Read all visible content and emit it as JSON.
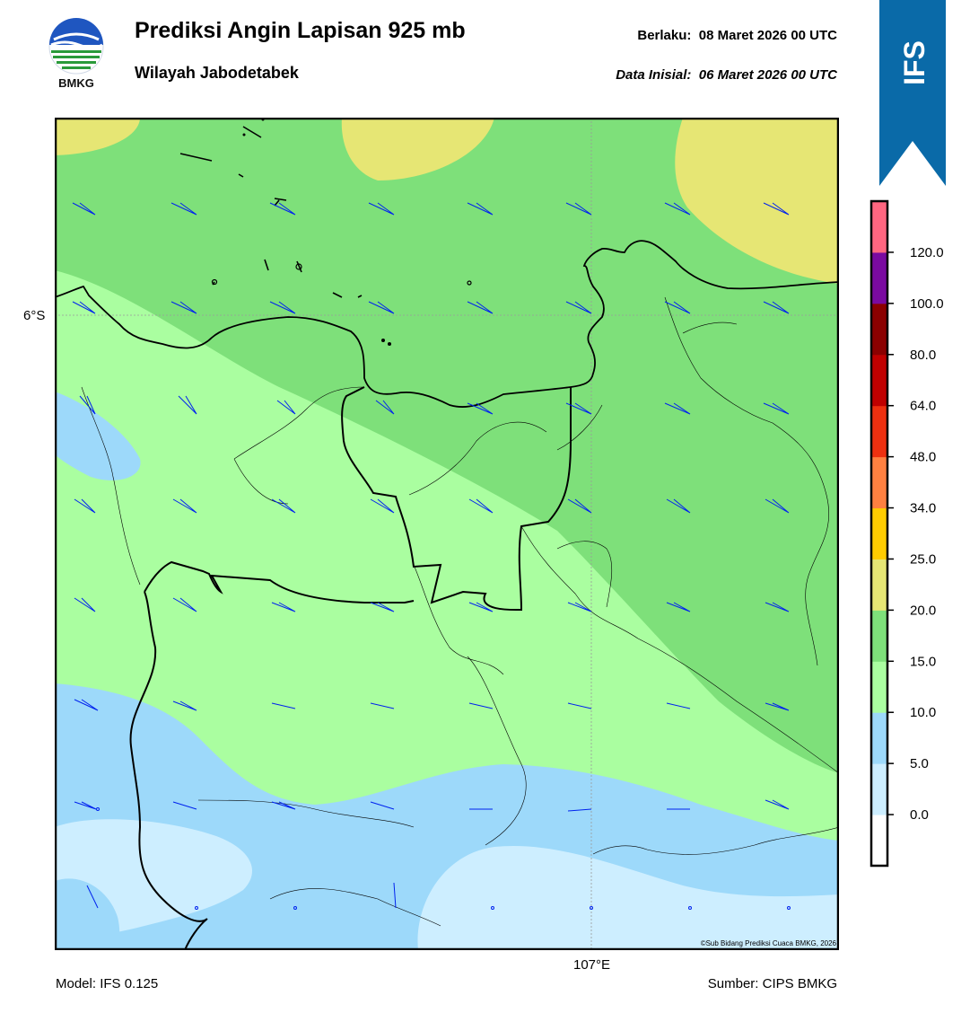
{
  "header": {
    "logo_text": "BMKG",
    "title": "Prediksi Angin Lapisan 925 mb",
    "subtitle": "Wilayah Jabodetabek",
    "valid_label": "Berlaku:",
    "valid_time": "08 Maret 2026 00 UTC",
    "init_label": "Data Inisial:",
    "init_time": "06 Maret 2026 00 UTC"
  },
  "ribbon": {
    "text": "IFS",
    "color": "#0066a8"
  },
  "map": {
    "lat_label": "6°S",
    "lon_label": "107°E",
    "copyright": "©Sub Bidang Prediksi Cuaca BMKG, 2026"
  },
  "legend": {
    "unit_levels": [
      "0.0",
      "5.0",
      "10.0",
      "15.0",
      "20.0",
      "25.0",
      "34.0",
      "48.0",
      "64.0",
      "80.0",
      "100.0",
      "120.0"
    ],
    "colors": [
      "#ffffff",
      "#cdeeff",
      "#9dd9fa",
      "#aafea0",
      "#7ee07a",
      "#e6e674",
      "#ffcc00",
      "#ff8040",
      "#ee3010",
      "#c00000",
      "#8b0000",
      "#7a0aa0",
      "#ff6680"
    ]
  },
  "footer": {
    "model": "Model: IFS 0.125",
    "source": "Sumber: CIPS BMKG"
  }
}
